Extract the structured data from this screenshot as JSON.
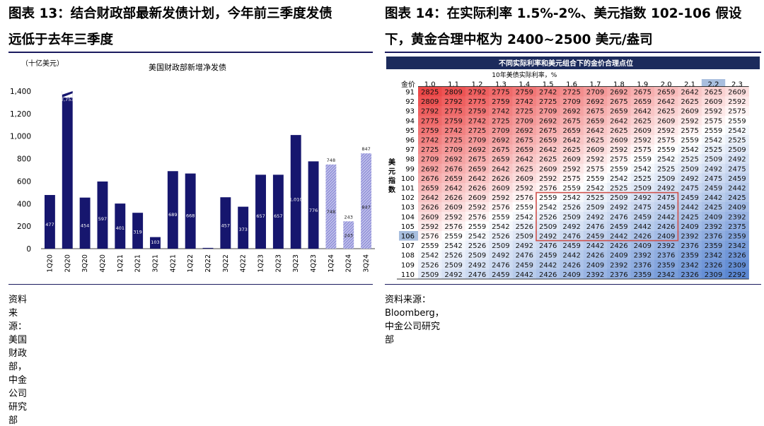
{
  "left": {
    "title_line1": "图表 13：结合财政部最新发债计划，今年前三季度发债",
    "title_line2": "远低于去年三季度",
    "source": "资料来源：美国财政部，中金公司研究部",
    "chart_data": {
      "type": "bar",
      "title": "美国财政部新增净发债",
      "unit_label": "（十亿美元）",
      "categories": [
        "1Q20",
        "2Q20",
        "3Q20",
        "4Q20",
        "1Q21",
        "2Q21",
        "3Q21",
        "4Q21",
        "1Q22",
        "2Q22",
        "3Q22",
        "4Q22",
        "1Q23",
        "2Q23",
        "3Q23",
        "4Q23",
        "1Q24",
        "2Q24",
        "3Q24"
      ],
      "values": [
        477,
        2753,
        454,
        597,
        401,
        319,
        103,
        689,
        668,
        7,
        457,
        373,
        657,
        657,
        1010,
        776,
        748,
        243,
        847
      ],
      "labels": [
        "477",
        "2,753",
        "454",
        "597",
        "401",
        "319",
        "103",
        "689",
        "668",
        "7",
        "457",
        "373",
        "657",
        "657",
        "1,010",
        "776",
        "748",
        "243",
        "847"
      ],
      "forecast_from_index": 16,
      "ylim": [
        0,
        1400
      ],
      "yticks": [
        "0",
        "200",
        "400",
        "600",
        "800",
        "1,000",
        "1,200",
        "1,400"
      ],
      "colors": {
        "actual": "#16166e",
        "forecast": "#8c8cd6"
      }
    }
  },
  "right": {
    "title_line1": "图表 14：在实际利率 1.5%-2%、美元指数 102-106 假设",
    "title_line2": "下，黄金合理中枢为 2400~2500 美元/盎司",
    "source": "资料来源：Bloomberg，中金公司研究部",
    "chart_data": {
      "type": "heatmap",
      "title": "不同实际利率和美元组合下的金价合理点位",
      "xlabel": "10年美债实际利率，%",
      "corner_label": "金价",
      "ylabel": "美元指数",
      "x": [
        "1.0",
        "1.1",
        "1.2",
        "1.3",
        "1.4",
        "1.5",
        "1.6",
        "1.7",
        "1.8",
        "1.9",
        "2.0",
        "2.1",
        "2.2",
        "2.3"
      ],
      "y": [
        "91",
        "92",
        "93",
        "94",
        "95",
        "96",
        "97",
        "98",
        "99",
        "100",
        "101",
        "102",
        "103",
        "104",
        "105",
        "106",
        "107",
        "108",
        "109",
        "110"
      ],
      "values": [
        [
          2825,
          2809,
          2792,
          2775,
          2759,
          2742,
          2725,
          2709,
          2692,
          2675,
          2659,
          2642,
          2625,
          2609
        ],
        [
          2809,
          2792,
          2775,
          2759,
          2742,
          2725,
          2709,
          2692,
          2675,
          2659,
          2642,
          2625,
          2609,
          2592
        ],
        [
          2792,
          2775,
          2759,
          2742,
          2725,
          2709,
          2692,
          2675,
          2659,
          2642,
          2625,
          2609,
          2592,
          2575
        ],
        [
          2775,
          2759,
          2742,
          2725,
          2709,
          2692,
          2675,
          2659,
          2642,
          2625,
          2609,
          2592,
          2575,
          2559
        ],
        [
          2759,
          2742,
          2725,
          2709,
          2692,
          2675,
          2659,
          2642,
          2625,
          2609,
          2592,
          2575,
          2559,
          2542
        ],
        [
          2742,
          2725,
          2709,
          2692,
          2675,
          2659,
          2642,
          2625,
          2609,
          2592,
          2575,
          2559,
          2542,
          2525
        ],
        [
          2725,
          2709,
          2692,
          2675,
          2659,
          2642,
          2625,
          2609,
          2592,
          2575,
          2559,
          2542,
          2525,
          2509
        ],
        [
          2709,
          2692,
          2675,
          2659,
          2642,
          2625,
          2609,
          2592,
          2575,
          2559,
          2542,
          2525,
          2509,
          2492
        ],
        [
          2692,
          2676,
          2659,
          2642,
          2625,
          2609,
          2592,
          2575,
          2559,
          2542,
          2525,
          2509,
          2492,
          2475
        ],
        [
          2676,
          2659,
          2642,
          2626,
          2609,
          2592,
          2575,
          2559,
          2542,
          2525,
          2509,
          2492,
          2475,
          2459
        ],
        [
          2659,
          2642,
          2626,
          2609,
          2592,
          2576,
          2559,
          2542,
          2525,
          2509,
          2492,
          2475,
          2459,
          2442
        ],
        [
          2642,
          2626,
          2609,
          2592,
          2576,
          2559,
          2542,
          2525,
          2509,
          2492,
          2475,
          2459,
          2442,
          2425
        ],
        [
          2626,
          2609,
          2592,
          2576,
          2559,
          2542,
          2526,
          2509,
          2492,
          2475,
          2459,
          2442,
          2425,
          2409
        ],
        [
          2609,
          2592,
          2576,
          2559,
          2542,
          2526,
          2509,
          2492,
          2476,
          2459,
          2442,
          2425,
          2409,
          2392
        ],
        [
          2592,
          2576,
          2559,
          2542,
          2526,
          2509,
          2492,
          2476,
          2459,
          2442,
          2426,
          2409,
          2392,
          2375
        ],
        [
          2576,
          2559,
          2542,
          2526,
          2509,
          2492,
          2476,
          2459,
          2442,
          2426,
          2409,
          2392,
          2376,
          2359
        ],
        [
          2559,
          2542,
          2526,
          2509,
          2492,
          2476,
          2459,
          2442,
          2426,
          2409,
          2392,
          2376,
          2359,
          2342
        ],
        [
          2542,
          2526,
          2509,
          2492,
          2476,
          2459,
          2442,
          2426,
          2409,
          2392,
          2376,
          2359,
          2342,
          2326
        ],
        [
          2526,
          2509,
          2492,
          2476,
          2459,
          2442,
          2426,
          2409,
          2392,
          2376,
          2359,
          2342,
          2326,
          2309
        ],
        [
          2509,
          2492,
          2476,
          2459,
          2442,
          2426,
          2409,
          2392,
          2376,
          2359,
          2342,
          2326,
          2309,
          2292
        ]
      ],
      "highlight_x": "2.2",
      "highlight_y": "106",
      "highlight_box": {
        "x_from": "1.5",
        "x_to": "2.0",
        "y_from": "102",
        "y_to": "106"
      },
      "colors": {
        "high": "#ec4848",
        "mid": "#ffffff",
        "low": "#5b87d2",
        "box": "#d0504a",
        "header_bg": "#1c2b5c",
        "highlight_bg": "#a8bede"
      }
    }
  }
}
